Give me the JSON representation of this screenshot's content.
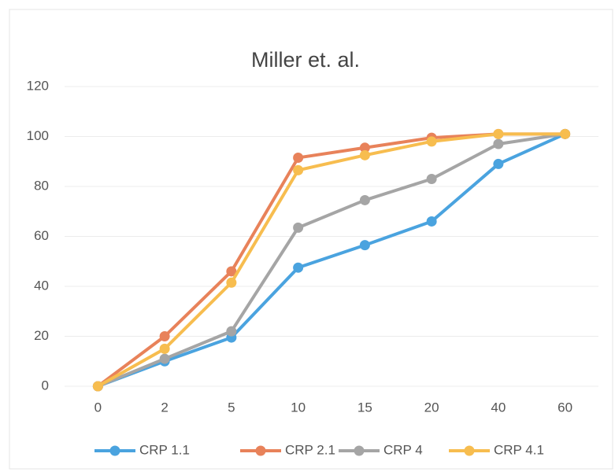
{
  "chart_data": {
    "type": "line",
    "title": "Miller et. al.",
    "categories": [
      "0",
      "2",
      "5",
      "10",
      "15",
      "20",
      "40",
      "60"
    ],
    "series": [
      {
        "name": "CRP 1.1",
        "color": "#4aa3df",
        "values": [
          0,
          10,
          19.5,
          47.5,
          56.5,
          66,
          89,
          101
        ]
      },
      {
        "name": "CRP 2.1",
        "color": "#e8825a",
        "values": [
          0,
          20,
          46,
          91.5,
          95.5,
          99.5,
          101,
          101
        ]
      },
      {
        "name": "CRP 4",
        "color": "#a5a5a5",
        "values": [
          0,
          11,
          22,
          63.5,
          74.5,
          83,
          97,
          101
        ]
      },
      {
        "name": "CRP 4.1",
        "color": "#f7bd4f",
        "values": [
          0,
          15,
          41.5,
          86.5,
          92.5,
          98,
          101,
          101
        ]
      }
    ],
    "ylim": [
      0,
      120
    ],
    "yticks": [
      0,
      20,
      40,
      60,
      80,
      100,
      120
    ],
    "grid": true,
    "legend": "bottom"
  }
}
